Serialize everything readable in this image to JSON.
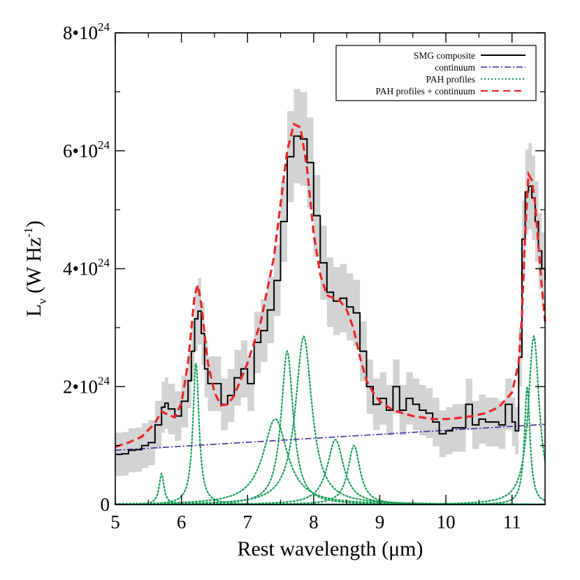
{
  "chart_data": {
    "type": "line",
    "title": "",
    "xlabel": "Rest wavelength (μm)",
    "ylabel": {
      "base": "L",
      "sub": "ν",
      "unit": "(W Hz",
      "exp": "-1",
      "close": ")"
    },
    "xlim": [
      5,
      11.5
    ],
    "ylim": [
      0,
      8e+24
    ],
    "x_ticks": [
      5,
      6,
      7,
      8,
      9,
      10,
      11
    ],
    "x_tick_labels": [
      "5",
      "6",
      "7",
      "8",
      "9",
      "10",
      "11"
    ],
    "y_ticks": [
      0,
      2e+24,
      4e+24,
      6e+24,
      8e+24
    ],
    "y_tick_labels": [
      {
        "text": "0",
        "exp": ""
      },
      {
        "text": "2•10",
        "exp": "24"
      },
      {
        "text": "4•10",
        "exp": "24"
      },
      {
        "text": "6•10",
        "exp": "24"
      },
      {
        "text": "8•10",
        "exp": "24"
      }
    ],
    "grid": false,
    "legend_position": "top-right",
    "colors": {
      "composite": "#000000",
      "band": "#d3d3d5",
      "continuum": "#3b2e9a",
      "pah": "#1aa05a",
      "model": "#e8282a"
    },
    "series": [
      {
        "name": "SMG composite",
        "style": "solid-step",
        "x": [
          5.0,
          5.1,
          5.2,
          5.3,
          5.4,
          5.5,
          5.6,
          5.7,
          5.75,
          5.8,
          5.9,
          6.0,
          6.1,
          6.15,
          6.2,
          6.25,
          6.3,
          6.35,
          6.4,
          6.5,
          6.6,
          6.7,
          6.8,
          6.9,
          7.0,
          7.1,
          7.2,
          7.3,
          7.4,
          7.5,
          7.6,
          7.7,
          7.8,
          7.9,
          8.0,
          8.1,
          8.2,
          8.3,
          8.4,
          8.5,
          8.6,
          8.7,
          8.8,
          8.9,
          9.0,
          9.1,
          9.2,
          9.3,
          9.4,
          9.5,
          9.6,
          9.7,
          9.8,
          9.9,
          10.0,
          10.1,
          10.2,
          10.3,
          10.4,
          10.5,
          10.6,
          10.7,
          10.8,
          10.9,
          11.0,
          11.05,
          11.1,
          11.15,
          11.2,
          11.25,
          11.3,
          11.35,
          11.4,
          11.45,
          11.5
        ],
        "y": [
          0.85,
          0.86,
          0.92,
          0.93,
          1.0,
          1.05,
          1.35,
          1.65,
          1.72,
          1.62,
          1.5,
          1.75,
          2.1,
          2.6,
          3.15,
          3.28,
          2.9,
          2.3,
          2.05,
          2.05,
          1.7,
          1.85,
          2.15,
          2.3,
          2.05,
          2.75,
          2.95,
          3.3,
          3.8,
          4.8,
          5.9,
          6.25,
          6.2,
          5.8,
          4.9,
          4.1,
          3.6,
          3.45,
          3.5,
          3.35,
          3.25,
          2.6,
          2.0,
          1.7,
          1.8,
          1.6,
          2.0,
          1.6,
          1.8,
          1.7,
          1.6,
          1.55,
          1.4,
          1.2,
          1.25,
          1.3,
          1.3,
          1.7,
          1.35,
          1.45,
          1.4,
          1.4,
          1.35,
          1.7,
          1.4,
          1.25,
          2.5,
          4.5,
          5.3,
          5.4,
          5.2,
          4.8,
          4.3,
          4.0,
          3.8
        ]
      },
      {
        "name": "continuum",
        "style": "dash-dot",
        "x": [
          5.0,
          11.5
        ],
        "y": [
          0.92,
          1.36
        ]
      },
      {
        "name": "PAH profiles",
        "style": "dotted",
        "profiles": [
          {
            "center": 5.7,
            "peak": 0.52,
            "width": 0.09
          },
          {
            "center": 6.22,
            "peak": 2.4,
            "width": 0.11
          },
          {
            "center": 7.42,
            "peak": 1.45,
            "width": 0.45
          },
          {
            "center": 7.6,
            "peak": 2.6,
            "width": 0.22
          },
          {
            "center": 7.85,
            "peak": 2.85,
            "width": 0.3
          },
          {
            "center": 8.33,
            "peak": 1.1,
            "width": 0.3
          },
          {
            "center": 8.61,
            "peak": 1.0,
            "width": 0.22
          },
          {
            "center": 11.23,
            "peak": 2.0,
            "width": 0.1
          },
          {
            "center": 11.33,
            "peak": 2.85,
            "width": 0.2
          }
        ]
      },
      {
        "name": "PAH profiles + continuum",
        "style": "dashed",
        "x": [
          5.0,
          5.2,
          5.4,
          5.6,
          5.7,
          5.8,
          5.9,
          6.0,
          6.1,
          6.2,
          6.25,
          6.3,
          6.4,
          6.5,
          6.6,
          6.7,
          6.8,
          7.0,
          7.2,
          7.4,
          7.5,
          7.6,
          7.7,
          7.8,
          7.9,
          8.0,
          8.1,
          8.2,
          8.3,
          8.4,
          8.5,
          8.6,
          8.7,
          8.8,
          8.9,
          9.0,
          9.2,
          9.5,
          9.8,
          10.0,
          10.2,
          10.4,
          10.6,
          10.8,
          11.0,
          11.1,
          11.15,
          11.2,
          11.25,
          11.3,
          11.35,
          11.4,
          11.45,
          11.5
        ],
        "y": [
          0.98,
          1.05,
          1.15,
          1.38,
          1.58,
          1.52,
          1.48,
          1.72,
          2.4,
          3.55,
          3.72,
          3.4,
          2.4,
          1.9,
          1.68,
          1.7,
          1.85,
          2.4,
          3.1,
          4.2,
          5.1,
          6.0,
          6.45,
          6.4,
          5.7,
          4.6,
          3.9,
          3.55,
          3.5,
          3.45,
          3.3,
          3.0,
          2.5,
          2.1,
          1.9,
          1.75,
          1.6,
          1.5,
          1.45,
          1.45,
          1.47,
          1.5,
          1.55,
          1.65,
          1.9,
          2.4,
          3.2,
          4.6,
          5.6,
          5.5,
          5.1,
          4.4,
          3.7,
          3.1
        ]
      }
    ],
    "legend": [
      {
        "label": "SMG composite",
        "style": "solid"
      },
      {
        "label": "continuum",
        "style": "dash-dot"
      },
      {
        "label": "PAH profiles",
        "style": "dotted"
      },
      {
        "label": "PAH profiles + continuum",
        "style": "dashed"
      }
    ]
  }
}
